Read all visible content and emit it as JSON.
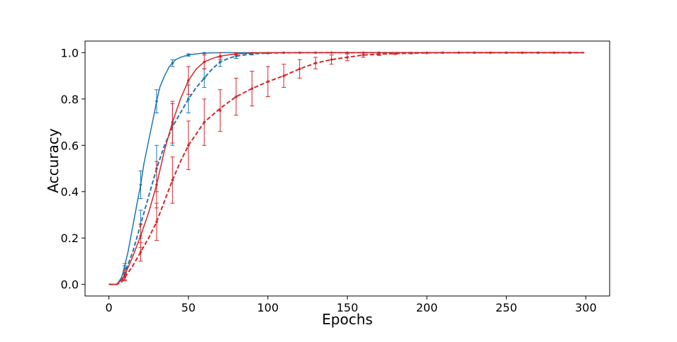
{
  "chart_data": {
    "type": "line",
    "title": "",
    "xlabel": "Epochs",
    "ylabel": "Accuracy",
    "xlim": [
      -15,
      315
    ],
    "ylim": [
      -0.05,
      1.05
    ],
    "xticks": [
      0,
      50,
      100,
      150,
      200,
      250,
      300
    ],
    "xtick_labels": [
      "0",
      "50",
      "100",
      "150",
      "200",
      "250",
      "300"
    ],
    "yticks": [
      0.0,
      0.2,
      0.4,
      0.6,
      0.8,
      1.0
    ],
    "ytick_labels": [
      "0.0",
      "0.2",
      "0.4",
      "0.6",
      "0.8",
      "1.0"
    ],
    "grid": false,
    "legend": "none",
    "series": [
      {
        "color": "#1f77b4",
        "linestyle": "solid",
        "x": [
          0,
          5,
          8,
          10,
          12,
          15,
          18,
          20,
          22,
          25,
          28,
          30,
          32,
          35,
          38,
          40,
          42,
          45,
          50,
          55,
          60,
          70,
          80,
          100,
          150,
          200,
          250,
          299
        ],
        "y": [
          0.0,
          0.0,
          0.03,
          0.08,
          0.14,
          0.25,
          0.36,
          0.43,
          0.52,
          0.62,
          0.72,
          0.79,
          0.85,
          0.9,
          0.94,
          0.955,
          0.97,
          0.98,
          0.99,
          0.995,
          0.998,
          1.0,
          1.0,
          1.0,
          1.0,
          1.0,
          1.0,
          1.0
        ],
        "errorbars": [
          {
            "x": 10,
            "y": 0.07,
            "err": 0.02
          },
          {
            "x": 20,
            "y": 0.43,
            "err": 0.06
          },
          {
            "x": 30,
            "y": 0.79,
            "err": 0.05
          },
          {
            "x": 40,
            "y": 0.955,
            "err": 0.015
          },
          {
            "x": 50,
            "y": 0.99,
            "err": 0.005
          },
          {
            "x": 60,
            "y": 0.998,
            "err": 0.002
          }
        ]
      },
      {
        "color": "#1f77b4",
        "linestyle": "dashed",
        "x": [
          0,
          5,
          8,
          10,
          15,
          20,
          25,
          30,
          35,
          40,
          45,
          50,
          55,
          60,
          65,
          70,
          75,
          80,
          90,
          100,
          120,
          150,
          200,
          250,
          299
        ],
        "y": [
          0.0,
          0.0,
          0.02,
          0.05,
          0.14,
          0.26,
          0.38,
          0.5,
          0.6,
          0.68,
          0.74,
          0.8,
          0.85,
          0.89,
          0.93,
          0.96,
          0.975,
          0.985,
          0.995,
          0.998,
          1.0,
          1.0,
          1.0,
          1.0,
          1.0
        ],
        "errorbars": [
          {
            "x": 10,
            "y": 0.05,
            "err": 0.03
          },
          {
            "x": 20,
            "y": 0.26,
            "err": 0.06
          },
          {
            "x": 30,
            "y": 0.5,
            "err": 0.1
          },
          {
            "x": 40,
            "y": 0.69,
            "err": 0.09
          },
          {
            "x": 50,
            "y": 0.8,
            "err": 0.06
          },
          {
            "x": 60,
            "y": 0.89,
            "err": 0.04
          },
          {
            "x": 70,
            "y": 0.96,
            "err": 0.02
          },
          {
            "x": 80,
            "y": 0.985,
            "err": 0.01
          },
          {
            "x": 90,
            "y": 0.995,
            "err": 0.005
          },
          {
            "x": 100,
            "y": 0.998,
            "err": 0.002
          },
          {
            "x": 110,
            "y": 1.0,
            "err": 0.0
          },
          {
            "x": 120,
            "y": 1.0,
            "err": 0.0
          },
          {
            "x": 130,
            "y": 1.0,
            "err": 0.0
          },
          {
            "x": 140,
            "y": 1.0,
            "err": 0.0
          },
          {
            "x": 150,
            "y": 1.0,
            "err": 0.0
          },
          {
            "x": 160,
            "y": 1.0,
            "err": 0.0
          },
          {
            "x": 170,
            "y": 1.0,
            "err": 0.0
          }
        ]
      },
      {
        "color": "#d62728",
        "linestyle": "solid",
        "x": [
          0,
          5,
          8,
          10,
          15,
          20,
          25,
          30,
          35,
          40,
          45,
          50,
          55,
          60,
          65,
          70,
          80,
          90,
          100,
          150,
          200,
          250,
          299
        ],
        "y": [
          0.0,
          0.0,
          0.02,
          0.04,
          0.12,
          0.21,
          0.31,
          0.43,
          0.58,
          0.7,
          0.8,
          0.88,
          0.93,
          0.96,
          0.975,
          0.985,
          0.995,
          0.998,
          1.0,
          1.0,
          1.0,
          1.0,
          1.0
        ],
        "errorbars": [
          {
            "x": 10,
            "y": 0.04,
            "err": 0.02
          },
          {
            "x": 20,
            "y": 0.21,
            "err": 0.05
          },
          {
            "x": 30,
            "y": 0.43,
            "err": 0.1
          },
          {
            "x": 40,
            "y": 0.7,
            "err": 0.09
          },
          {
            "x": 50,
            "y": 0.88,
            "err": 0.06
          },
          {
            "x": 60,
            "y": 0.96,
            "err": 0.03
          },
          {
            "x": 70,
            "y": 0.985,
            "err": 0.015
          },
          {
            "x": 80,
            "y": 0.995,
            "err": 0.005
          },
          {
            "x": 90,
            "y": 0.998,
            "err": 0.002
          }
        ]
      },
      {
        "color": "#d62728",
        "linestyle": "dashed",
        "x": [
          0,
          5,
          8,
          10,
          15,
          20,
          25,
          30,
          35,
          40,
          45,
          50,
          55,
          60,
          70,
          80,
          90,
          100,
          110,
          120,
          130,
          140,
          150,
          160,
          170,
          180,
          200,
          230,
          260,
          299
        ],
        "y": [
          0.0,
          0.0,
          0.01,
          0.03,
          0.08,
          0.14,
          0.2,
          0.27,
          0.36,
          0.45,
          0.53,
          0.6,
          0.65,
          0.7,
          0.76,
          0.81,
          0.845,
          0.875,
          0.9,
          0.93,
          0.955,
          0.97,
          0.98,
          0.99,
          0.993,
          0.996,
          0.999,
          1.0,
          1.0,
          1.0
        ],
        "errorbars": [
          {
            "x": 10,
            "y": 0.03,
            "err": 0.015
          },
          {
            "x": 20,
            "y": 0.14,
            "err": 0.04
          },
          {
            "x": 30,
            "y": 0.27,
            "err": 0.08
          },
          {
            "x": 40,
            "y": 0.45,
            "err": 0.1
          },
          {
            "x": 50,
            "y": 0.6,
            "err": 0.105
          },
          {
            "x": 60,
            "y": 0.7,
            "err": 0.1
          },
          {
            "x": 70,
            "y": 0.75,
            "err": 0.09
          },
          {
            "x": 80,
            "y": 0.81,
            "err": 0.08
          },
          {
            "x": 90,
            "y": 0.845,
            "err": 0.075
          },
          {
            "x": 100,
            "y": 0.875,
            "err": 0.065
          },
          {
            "x": 110,
            "y": 0.9,
            "err": 0.05
          },
          {
            "x": 120,
            "y": 0.93,
            "err": 0.04
          },
          {
            "x": 130,
            "y": 0.955,
            "err": 0.025
          },
          {
            "x": 140,
            "y": 0.97,
            "err": 0.02
          },
          {
            "x": 150,
            "y": 0.98,
            "err": 0.015
          },
          {
            "x": 160,
            "y": 0.99,
            "err": 0.01
          },
          {
            "x": 170,
            "y": 0.993,
            "err": 0.005
          },
          {
            "x": 180,
            "y": 0.996,
            "err": 0.004
          },
          {
            "x": 190,
            "y": 0.998,
            "err": 0.002
          },
          {
            "x": 200,
            "y": 0.999,
            "err": 0.001
          },
          {
            "x": 210,
            "y": 1.0,
            "err": 0.0
          },
          {
            "x": 220,
            "y": 1.0,
            "err": 0.0
          },
          {
            "x": 230,
            "y": 1.0,
            "err": 0.0
          },
          {
            "x": 240,
            "y": 1.0,
            "err": 0.0
          },
          {
            "x": 250,
            "y": 1.0,
            "err": 0.0
          },
          {
            "x": 260,
            "y": 1.0,
            "err": 0.0
          },
          {
            "x": 270,
            "y": 1.0,
            "err": 0.0
          },
          {
            "x": 280,
            "y": 1.0,
            "err": 0.0
          },
          {
            "x": 290,
            "y": 1.0,
            "err": 0.0
          }
        ]
      }
    ]
  }
}
